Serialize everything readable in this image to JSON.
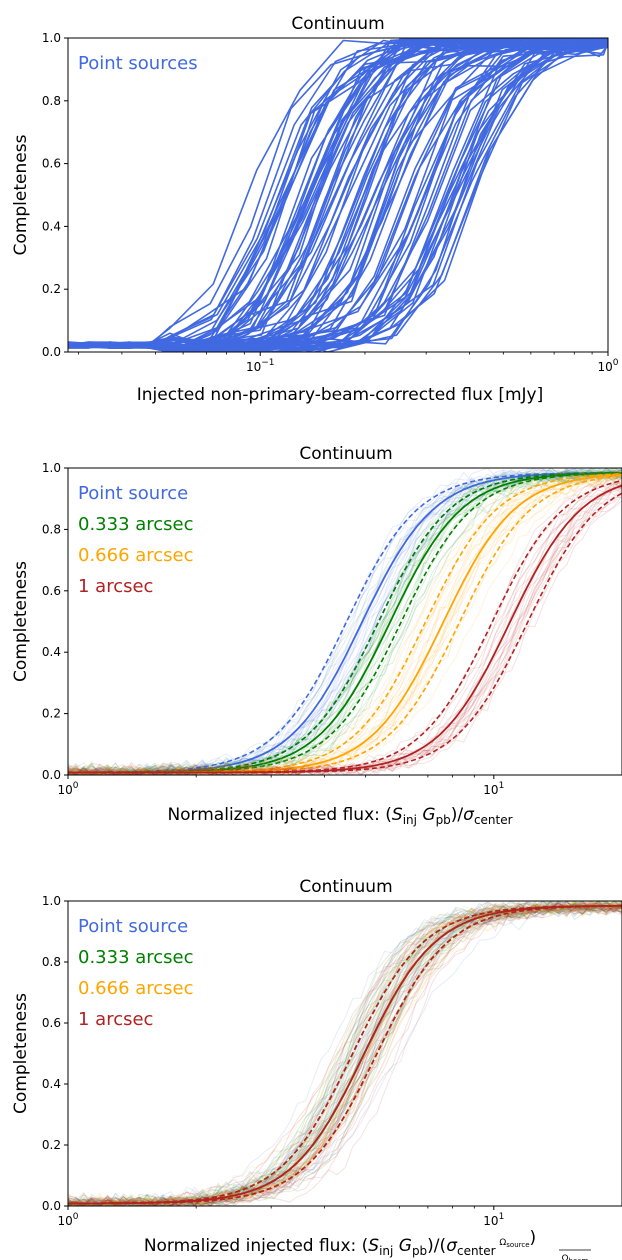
{
  "colors": {
    "point_source": "#4169e1",
    "arcsec_0333": "#008000",
    "arcsec_0666": "#ffa500",
    "arcsec_1": "#b22222"
  },
  "chart_data": [
    {
      "type": "line",
      "title": "Continuum",
      "xlabel": "Injected non-primary-beam-corrected flux [mJy]",
      "ylabel": "Completeness",
      "xscale": "log",
      "xlim": [
        0.028,
        1.0
      ],
      "ylim": [
        0.0,
        1.0
      ],
      "xticks": [
        {
          "v": 0.1,
          "base": "10",
          "exp": "−1"
        },
        {
          "v": 1.0,
          "base": "10",
          "exp": "0"
        }
      ],
      "yticks": [
        "0.0",
        "0.2",
        "0.4",
        "0.6",
        "0.8",
        "1.0"
      ],
      "legend": [
        {
          "label": "Point sources",
          "color": "#4169e1"
        }
      ],
      "series": [
        {
          "color": "#4169e1",
          "description": "many injection-recovery curves",
          "x50_range_mJy": [
            0.09,
            0.42
          ],
          "low_plateau": 0.01,
          "high_plateau": 0.98
        }
      ]
    },
    {
      "type": "line",
      "title": "Continuum",
      "xlabel": "Normalized injected flux: (S_inj G_pb)/σ_center",
      "ylabel": "Completeness",
      "xscale": "log",
      "xlim": [
        1.0,
        20.0
      ],
      "ylim": [
        0.0,
        1.0
      ],
      "xticks": [
        {
          "v": 1.0,
          "base": "10",
          "exp": "0"
        },
        {
          "v": 10.0,
          "base": "10",
          "exp": "1"
        }
      ],
      "yticks": [
        "0.0",
        "0.2",
        "0.4",
        "0.6",
        "0.8",
        "1.0"
      ],
      "legend": [
        {
          "label": "Point source",
          "color": "#4169e1"
        },
        {
          "label": "0.333 arcsec",
          "color": "#008000"
        },
        {
          "label": "0.666 arcsec",
          "color": "#ffa500"
        },
        {
          "label": "1 arcsec",
          "color": "#b22222"
        }
      ],
      "series": [
        {
          "color": "#4169e1",
          "x50": 4.9,
          "x50_low": 4.5,
          "x50_high": 5.35
        },
        {
          "color": "#008000",
          "x50": 5.7,
          "x50_low": 5.35,
          "x50_high": 6.05
        },
        {
          "color": "#ffa500",
          "x50": 7.6,
          "x50_low": 6.9,
          "x50_high": 8.3
        },
        {
          "color": "#b22222",
          "x50": 10.9,
          "x50_low": 9.9,
          "x50_high": 12.0
        }
      ]
    },
    {
      "type": "line",
      "title": "Continuum",
      "xlabel": "Normalized injected flux: (S_inj G_pb)/(σ_center Ω_source/Ω_beam)",
      "ylabel": "Completeness",
      "xscale": "log",
      "xlim": [
        1.0,
        20.0
      ],
      "ylim": [
        0.0,
        1.0
      ],
      "xticks": [
        {
          "v": 1.0,
          "base": "10",
          "exp": "0"
        },
        {
          "v": 10.0,
          "base": "10",
          "exp": "1"
        }
      ],
      "yticks": [
        "0.0",
        "0.2",
        "0.4",
        "0.6",
        "0.8",
        "1.0"
      ],
      "legend": [
        {
          "label": "Point source",
          "color": "#4169e1"
        },
        {
          "label": "0.333 arcsec",
          "color": "#008000"
        },
        {
          "label": "0.666 arcsec",
          "color": "#ffa500"
        },
        {
          "label": "1 arcsec",
          "color": "#b22222"
        }
      ],
      "series": [
        {
          "color": "#4169e1",
          "x50": 4.95,
          "x50_low": 4.65,
          "x50_high": 5.3
        },
        {
          "color": "#008000",
          "x50": 4.95,
          "x50_low": 4.65,
          "x50_high": 5.3
        },
        {
          "color": "#ffa500",
          "x50": 4.95,
          "x50_low": 4.65,
          "x50_high": 5.3
        },
        {
          "color": "#b22222",
          "x50": 4.95,
          "x50_low": 4.65,
          "x50_high": 5.3
        }
      ]
    }
  ]
}
